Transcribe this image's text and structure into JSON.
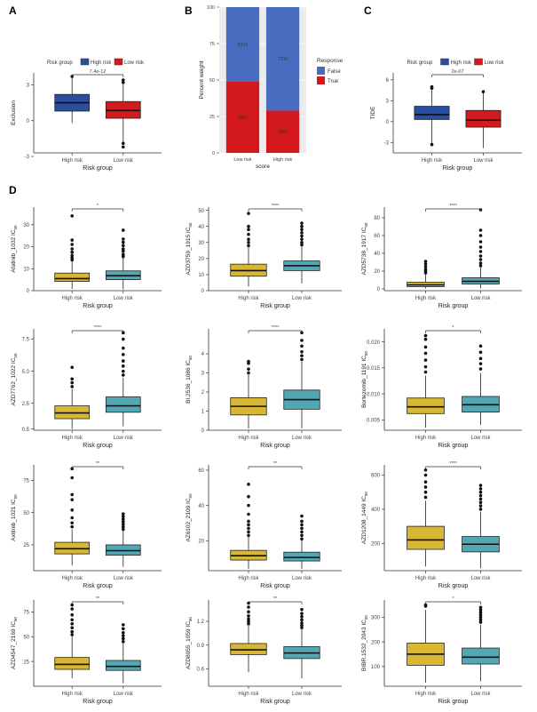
{
  "panel_letters": [
    "A",
    "B",
    "C",
    "D"
  ],
  "colors": {
    "high": "#2a4fa0",
    "low": "#d3191b",
    "false": "#4a6cc0",
    "true": "#d3191b",
    "box_high": "#d8b732",
    "box_low": "#52a7b4"
  },
  "chart_data": [
    {
      "type": "box",
      "panel": "A",
      "legend_title": "Risk group",
      "legend_items": [
        "High risk",
        "Low risk"
      ],
      "categories": [
        "High risk",
        "Low risk"
      ],
      "xlabel": "Risk group",
      "ylabel": "Exclusion",
      "ylim": [
        -2.7,
        4.0
      ],
      "yticks": [
        -3,
        0,
        3
      ],
      "ytick_labels": [
        "-3",
        "0",
        "3"
      ],
      "pvalue": "7.4e-12",
      "boxes": [
        {
          "q1": 0.8,
          "median": 1.5,
          "q3": 2.2,
          "lower": -0.2,
          "upper": 3.7,
          "outliers": [
            3.7
          ]
        },
        {
          "q1": 0.2,
          "median": 0.85,
          "q3": 1.6,
          "lower": -1.8,
          "upper": 3.4,
          "outliers": [
            -1.9,
            -2.2,
            3.2,
            3.4
          ]
        }
      ]
    },
    {
      "type": "bar",
      "panel": "B",
      "stacked": true,
      "categories": [
        "Low risk",
        "High risk"
      ],
      "xlabel": "score",
      "ylabel": "Percent weight",
      "ylim": [
        0,
        100
      ],
      "yticks": [
        0,
        25,
        50,
        75,
        100
      ],
      "ytick_labels": [
        "0",
        "25",
        "50",
        "75",
        "100"
      ],
      "legend_title": "Response",
      "series": [
        {
          "name": "True",
          "values": [
            49,
            29
          ],
          "labels": [
            "49%",
            "29%"
          ]
        },
        {
          "name": "False",
          "values": [
            51,
            71
          ],
          "labels": [
            "51%",
            "71%"
          ]
        }
      ]
    },
    {
      "type": "box",
      "panel": "C",
      "legend_title": "Risk group",
      "legend_items": [
        "High risk",
        "Low risk"
      ],
      "categories": [
        "High risk",
        "Low risk"
      ],
      "xlabel": "Risk group",
      "ylabel": "TIDE",
      "ylim": [
        -4.5,
        7.0
      ],
      "yticks": [
        -3,
        0,
        3,
        6
      ],
      "ytick_labels": [
        "-3",
        "0",
        "3",
        "6"
      ],
      "pvalue": "2e-07",
      "boxes": [
        {
          "q1": 0.3,
          "median": 1.0,
          "q3": 2.2,
          "lower": -3.2,
          "upper": 4.8,
          "outliers": [
            4.8,
            5.0,
            -3.3
          ]
        },
        {
          "q1": -0.8,
          "median": 0.2,
          "q3": 1.6,
          "lower": -3.8,
          "upper": 4.3,
          "outliers": [
            4.3
          ]
        }
      ]
    },
    {
      "type": "box",
      "panel": "D",
      "categories": [
        "High risk",
        "Low risk"
      ],
      "xlabel": "Risk group",
      "ylabel": "Afatinib_1032 IC50",
      "ylim": [
        0,
        38
      ],
      "yticks": [
        0,
        10,
        20,
        30
      ],
      "ytick_labels": [
        "0",
        "10",
        "20",
        "30"
      ],
      "sig": "*",
      "boxes": [
        {
          "q1": 4.2,
          "median": 5.5,
          "q3": 8.0,
          "lower": 0.8,
          "upper": 13.5,
          "outliers": [
            14,
            15,
            16,
            17.5,
            19,
            21,
            23,
            34
          ]
        },
        {
          "q1": 5.0,
          "median": 6.8,
          "q3": 9.0,
          "lower": 0.6,
          "upper": 15,
          "outliers": [
            15.5,
            16.5,
            18,
            19,
            20.5,
            22,
            23.5,
            27.5
          ]
        }
      ]
    },
    {
      "type": "box",
      "panel": "D",
      "categories": [
        "High risk",
        "Low risk"
      ],
      "xlabel": "Risk group",
      "ylabel": "AZD3759_1915 IC50",
      "ylim": [
        0,
        52
      ],
      "yticks": [
        0,
        10,
        20,
        30,
        40,
        50
      ],
      "ytick_labels": [
        "0",
        "10",
        "20",
        "30",
        "40",
        "50"
      ],
      "sig": "****",
      "boxes": [
        {
          "q1": 9.0,
          "median": 12.5,
          "q3": 16.5,
          "lower": 2.5,
          "upper": 27,
          "outliers": [
            28,
            30,
            32,
            35,
            38,
            40,
            48
          ]
        },
        {
          "q1": 12.5,
          "median": 15.5,
          "q3": 18.5,
          "lower": 4.5,
          "upper": 27.5,
          "outliers": [
            28.5,
            30,
            32,
            34,
            36,
            38,
            40,
            42
          ]
        }
      ]
    },
    {
      "type": "box",
      "panel": "D",
      "categories": [
        "High risk",
        "Low risk"
      ],
      "xlabel": "Risk group",
      "ylabel": "AZD5738_1917 IC50",
      "ylim": [
        -2,
        92
      ],
      "yticks": [
        0,
        20,
        40,
        60,
        80
      ],
      "ytick_labels": [
        "0",
        "20",
        "40",
        "60",
        "80"
      ],
      "sig": "****",
      "boxes": [
        {
          "q1": 2.5,
          "median": 4.5,
          "q3": 7.5,
          "lower": 0.5,
          "upper": 17,
          "outliers": [
            18,
            20,
            22,
            25,
            28,
            31
          ]
        },
        {
          "q1": 5.5,
          "median": 8.5,
          "q3": 12.5,
          "lower": 0.5,
          "upper": 24,
          "outliers": [
            26,
            29,
            33,
            37,
            42,
            47,
            53,
            60,
            66,
            89
          ]
        }
      ]
    },
    {
      "type": "box",
      "panel": "D",
      "categories": [
        "High risk",
        "Low risk"
      ],
      "xlabel": "Risk group",
      "ylabel": "AZD7762_1022 IC50",
      "ylim": [
        0.4,
        8.3
      ],
      "yticks": [
        0.5,
        2.5,
        5.0,
        7.5
      ],
      "ytick_labels": [
        "0.5",
        "2.5",
        "5.0",
        "7.5"
      ],
      "sig": "****",
      "boxes": [
        {
          "q1": 1.3,
          "median": 1.75,
          "q3": 2.3,
          "lower": 0.5,
          "upper": 3.6,
          "outliers": [
            3.8,
            4.1,
            4.4,
            5.3
          ]
        },
        {
          "q1": 1.8,
          "median": 2.3,
          "q3": 3.0,
          "lower": 0.7,
          "upper": 4.5,
          "outliers": [
            4.7,
            5.0,
            5.4,
            5.8,
            6.3,
            6.8,
            7.5,
            8.0
          ]
        }
      ]
    },
    {
      "type": "box",
      "panel": "D",
      "categories": [
        "High risk",
        "Low risk"
      ],
      "xlabel": "Risk group",
      "ylabel": "BI.2536_1086 IC50",
      "ylim": [
        0,
        5.3
      ],
      "yticks": [
        0,
        1,
        2,
        3,
        4
      ],
      "ytick_labels": [
        "0",
        "1",
        "2",
        "3",
        "4"
      ],
      "sig": "****",
      "boxes": [
        {
          "q1": 0.8,
          "median": 1.25,
          "q3": 1.7,
          "lower": 0.1,
          "upper": 2.9,
          "outliers": [
            3.0,
            3.2,
            3.5,
            3.6
          ]
        },
        {
          "q1": 1.1,
          "median": 1.6,
          "q3": 2.1,
          "lower": 0.1,
          "upper": 3.6,
          "outliers": [
            3.7,
            3.9,
            4.1,
            4.4,
            4.7,
            5.1
          ]
        }
      ]
    },
    {
      "type": "box",
      "panel": "D",
      "categories": [
        "High risk",
        "Low risk"
      ],
      "xlabel": "Risk group",
      "ylabel": "Bortezomib_1191 IC50",
      "ylim": [
        0.003,
        0.0225
      ],
      "yticks": [
        0.005,
        0.01,
        0.015,
        0.02
      ],
      "ytick_labels": [
        "0.005",
        "0.010",
        "0.015",
        "0.020"
      ],
      "sig": "*",
      "boxes": [
        {
          "q1": 0.0062,
          "median": 0.0075,
          "q3": 0.0092,
          "lower": 0.0035,
          "upper": 0.0135,
          "outliers": [
            0.0142,
            0.0152,
            0.0165,
            0.0178,
            0.019,
            0.0205,
            0.0212
          ]
        },
        {
          "q1": 0.0065,
          "median": 0.0079,
          "q3": 0.0095,
          "lower": 0.004,
          "upper": 0.014,
          "outliers": [
            0.0148,
            0.0158,
            0.0168,
            0.018,
            0.0192
          ]
        }
      ]
    },
    {
      "type": "box",
      "panel": "D",
      "categories": [
        "High risk",
        "Low risk"
      ],
      "xlabel": "Risk group",
      "ylabel": "Axitinib_1021 IC50",
      "ylim": [
        5,
        87
      ],
      "yticks": [
        25,
        50,
        75
      ],
      "ytick_labels": [
        "25",
        "50",
        "75"
      ],
      "sig": "**",
      "boxes": [
        {
          "q1": 18.0,
          "median": 22.0,
          "q3": 27.0,
          "lower": 9,
          "upper": 37,
          "outliers": [
            39,
            42,
            46,
            52,
            60,
            64,
            77,
            84
          ]
        },
        {
          "q1": 17.0,
          "median": 20.5,
          "q3": 25.0,
          "lower": 8,
          "upper": 36,
          "outliers": [
            37,
            39,
            41,
            43,
            45,
            47,
            49
          ]
        }
      ]
    },
    {
      "type": "box",
      "panel": "D",
      "categories": [
        "High risk",
        "Low risk"
      ],
      "xlabel": "Risk group",
      "ylabel": "AZ6102_2109 IC50",
      "ylim": [
        3,
        63
      ],
      "yticks": [
        20,
        40,
        60
      ],
      "ytick_labels": [
        "20",
        "40",
        "60"
      ],
      "sig": "**",
      "boxes": [
        {
          "q1": 9.0,
          "median": 11.5,
          "q3": 14.5,
          "lower": 4,
          "upper": 22,
          "outliers": [
            23,
            25,
            27,
            29,
            31,
            35,
            40,
            45,
            52
          ]
        },
        {
          "q1": 8.5,
          "median": 10.5,
          "q3": 13.5,
          "lower": 4,
          "upper": 20,
          "outliers": [
            21,
            23,
            25,
            27,
            29,
            31,
            34
          ]
        }
      ]
    },
    {
      "type": "box",
      "panel": "D",
      "categories": [
        "High risk",
        "Low risk"
      ],
      "xlabel": "Risk group",
      "ylabel": "AZD1208_1449 IC50",
      "ylim": [
        40,
        660
      ],
      "yticks": [
        200,
        400,
        600
      ],
      "ytick_labels": [
        "200",
        "400",
        "600"
      ],
      "sig": "****",
      "boxes": [
        {
          "q1": 165,
          "median": 220,
          "q3": 300,
          "lower": 65,
          "upper": 450,
          "outliers": [
            470,
            500,
            530,
            560,
            600,
            630
          ]
        },
        {
          "q1": 150,
          "median": 195,
          "q3": 240,
          "lower": 55,
          "upper": 385,
          "outliers": [
            400,
            420,
            440,
            460,
            480,
            500,
            520,
            540
          ]
        }
      ]
    },
    {
      "type": "box",
      "panel": "D",
      "categories": [
        "High risk",
        "Low risk"
      ],
      "xlabel": "Risk group",
      "ylabel": "AZD4547_2169 IC50",
      "ylim": [
        0,
        87
      ],
      "yticks": [
        25,
        50,
        75
      ],
      "ytick_labels": [
        "25",
        "50",
        "75"
      ],
      "sig": "**",
      "boxes": [
        {
          "q1": 17,
          "median": 22,
          "q3": 29,
          "lower": 8,
          "upper": 50,
          "outliers": [
            52,
            55,
            59,
            63,
            67,
            72,
            78,
            82
          ]
        },
        {
          "q1": 16,
          "median": 20,
          "q3": 26,
          "lower": 3,
          "upper": 43,
          "outliers": [
            45,
            48,
            51,
            54,
            58,
            62
          ]
        }
      ]
    },
    {
      "type": "box",
      "panel": "D",
      "categories": [
        "High risk",
        "Low risk"
      ],
      "xlabel": "Risk group",
      "ylabel": "AZD8055_1059 IC50",
      "ylim": [
        0.38,
        1.47
      ],
      "yticks": [
        0.6,
        0.9,
        1.2
      ],
      "ytick_labels": [
        "0.6",
        "0.9",
        "1.2"
      ],
      "sig": "**",
      "boxes": [
        {
          "q1": 0.78,
          "median": 0.84,
          "q3": 0.92,
          "lower": 0.56,
          "upper": 1.15,
          "outliers": [
            1.17,
            1.2,
            1.23,
            1.27,
            1.32,
            1.38,
            1.43
          ]
        },
        {
          "q1": 0.73,
          "median": 0.8,
          "q3": 0.88,
          "lower": 0.48,
          "upper": 1.1,
          "outliers": [
            1.12,
            1.15,
            1.18,
            1.22,
            1.26,
            1.3,
            1.35
          ]
        }
      ]
    },
    {
      "type": "box",
      "panel": "D",
      "categories": [
        "High risk",
        "Low risk"
      ],
      "xlabel": "Risk group",
      "ylabel": "BIBR.1532_2043 IC50",
      "ylim": [
        20,
        370
      ],
      "yticks": [
        100,
        200,
        300
      ],
      "ytick_labels": [
        "100",
        "200",
        "300"
      ],
      "sig": "*",
      "boxes": [
        {
          "q1": 105,
          "median": 150,
          "q3": 195,
          "lower": 35,
          "upper": 330,
          "outliers": [
            345,
            350
          ]
        },
        {
          "q1": 110,
          "median": 138,
          "q3": 175,
          "lower": 40,
          "upper": 270,
          "outliers": [
            280,
            290,
            300,
            310,
            320,
            330,
            340
          ]
        }
      ]
    }
  ]
}
